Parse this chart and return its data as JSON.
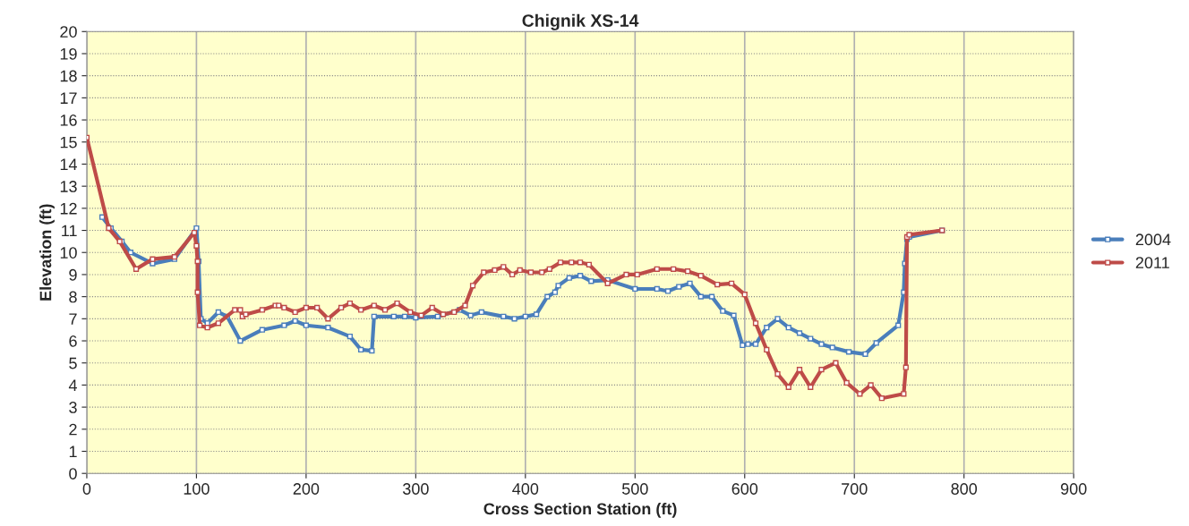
{
  "chart_data": {
    "type": "line",
    "title": "Chignik XS-14",
    "xlabel": "Cross Section Station (ft)",
    "ylabel": "Elevation (ft)",
    "xlim": [
      0,
      900
    ],
    "xticks": [
      0,
      100,
      200,
      300,
      400,
      500,
      600,
      700,
      800,
      900
    ],
    "ylim": [
      0,
      20
    ],
    "yticks": [
      0,
      1,
      2,
      3,
      4,
      5,
      6,
      7,
      8,
      9,
      10,
      11,
      12,
      13,
      14,
      15,
      16,
      17,
      18,
      19,
      20
    ],
    "grid": true,
    "legend": "right",
    "marker": "square",
    "line_style": "solid",
    "series": [
      {
        "name": "2004",
        "color": "#4a7ebb",
        "x": [
          14,
          22,
          32,
          40,
          60,
          80,
          100,
          102,
          104,
          110,
          120,
          128,
          140,
          160,
          180,
          190,
          200,
          220,
          240,
          250,
          260,
          262,
          280,
          290,
          300,
          320,
          340,
          350,
          360,
          380,
          390,
          400,
          410,
          420,
          427,
          430,
          440,
          450,
          460,
          475,
          500,
          520,
          530,
          540,
          550,
          560,
          570,
          580,
          590,
          598,
          603,
          610,
          620,
          630,
          640,
          650,
          660,
          670,
          680,
          695,
          710,
          720,
          740,
          745,
          746,
          748,
          750,
          780
        ],
        "values": [
          11.6,
          11.1,
          10.5,
          10.0,
          9.5,
          9.7,
          11.1,
          9.6,
          7.0,
          6.8,
          7.3,
          7.1,
          6.0,
          6.5,
          6.7,
          6.9,
          6.7,
          6.6,
          6.2,
          5.6,
          5.55,
          7.1,
          7.1,
          7.1,
          7.05,
          7.1,
          7.4,
          7.15,
          7.3,
          7.1,
          7.0,
          7.1,
          7.2,
          8.0,
          8.2,
          8.5,
          8.85,
          8.95,
          8.7,
          8.75,
          8.35,
          8.35,
          8.25,
          8.45,
          8.6,
          8.0,
          8.0,
          7.35,
          7.15,
          5.8,
          5.85,
          5.85,
          6.6,
          7.0,
          6.6,
          6.35,
          6.1,
          5.85,
          5.7,
          5.5,
          5.4,
          5.9,
          6.7,
          8.2,
          9.5,
          10.6,
          10.7,
          11.0
        ]
      },
      {
        "name": "2011",
        "color": "#be4b48",
        "x": [
          0,
          20,
          30,
          45,
          60,
          80,
          98,
          100,
          101,
          101,
          103,
          110,
          120,
          135,
          140,
          142,
          145,
          160,
          172,
          175,
          180,
          190,
          200,
          210,
          220,
          232,
          240,
          250,
          262,
          272,
          283,
          295,
          305,
          315,
          325,
          335,
          345,
          352,
          362,
          372,
          380,
          388,
          395,
          405,
          415,
          422,
          432,
          442,
          450,
          458,
          475,
          492,
          502,
          520,
          535,
          548,
          560,
          575,
          588,
          600,
          610,
          620,
          630,
          640,
          650,
          660,
          670,
          683,
          693,
          705,
          715,
          725,
          745,
          747,
          748,
          750,
          780
        ],
        "values": [
          15.2,
          11.1,
          10.5,
          9.25,
          9.7,
          9.8,
          10.9,
          10.3,
          9.6,
          8.2,
          6.7,
          6.6,
          6.8,
          7.4,
          7.4,
          7.1,
          7.2,
          7.4,
          7.6,
          7.6,
          7.5,
          7.3,
          7.5,
          7.5,
          7.0,
          7.5,
          7.7,
          7.4,
          7.6,
          7.4,
          7.7,
          7.3,
          7.15,
          7.5,
          7.2,
          7.3,
          7.6,
          8.5,
          9.1,
          9.2,
          9.35,
          9.0,
          9.2,
          9.1,
          9.1,
          9.25,
          9.55,
          9.55,
          9.55,
          9.45,
          8.6,
          9.0,
          9.0,
          9.25,
          9.25,
          9.15,
          8.95,
          8.55,
          8.6,
          8.1,
          6.8,
          5.6,
          4.5,
          3.9,
          4.7,
          3.9,
          4.7,
          5.0,
          4.1,
          3.6,
          4.0,
          3.4,
          3.6,
          4.8,
          10.7,
          10.8,
          11.0
        ]
      }
    ]
  }
}
